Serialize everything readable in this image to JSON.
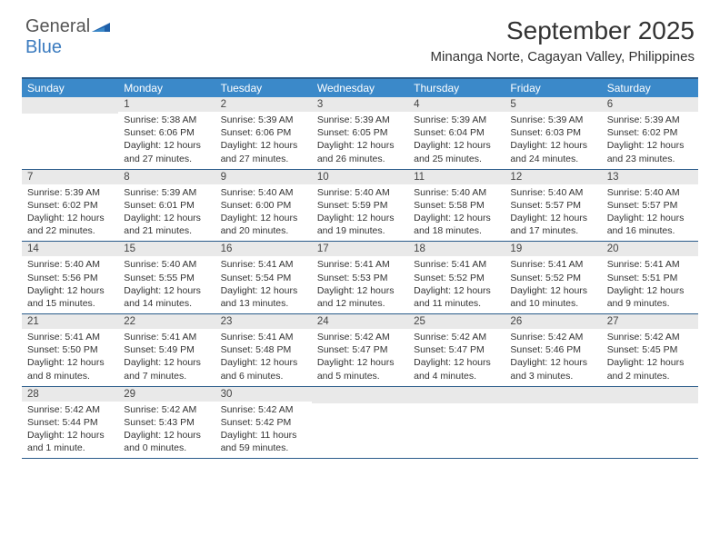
{
  "logo": {
    "text1": "General",
    "text2": "Blue"
  },
  "title": "September 2025",
  "location": "Minanga Norte, Cagayan Valley, Philippines",
  "colors": {
    "header_bg": "#3b89c9",
    "header_text": "#ffffff",
    "daynum_bg": "#e9e9e9",
    "border": "#2a5b8a",
    "logo_accent": "#3b7bbf"
  },
  "day_headers": [
    "Sunday",
    "Monday",
    "Tuesday",
    "Wednesday",
    "Thursday",
    "Friday",
    "Saturday"
  ],
  "weeks": [
    [
      {
        "n": "",
        "sr": "",
        "ss": "",
        "dl": ""
      },
      {
        "n": "1",
        "sr": "Sunrise: 5:38 AM",
        "ss": "Sunset: 6:06 PM",
        "dl": "Daylight: 12 hours and 27 minutes."
      },
      {
        "n": "2",
        "sr": "Sunrise: 5:39 AM",
        "ss": "Sunset: 6:06 PM",
        "dl": "Daylight: 12 hours and 27 minutes."
      },
      {
        "n": "3",
        "sr": "Sunrise: 5:39 AM",
        "ss": "Sunset: 6:05 PM",
        "dl": "Daylight: 12 hours and 26 minutes."
      },
      {
        "n": "4",
        "sr": "Sunrise: 5:39 AM",
        "ss": "Sunset: 6:04 PM",
        "dl": "Daylight: 12 hours and 25 minutes."
      },
      {
        "n": "5",
        "sr": "Sunrise: 5:39 AM",
        "ss": "Sunset: 6:03 PM",
        "dl": "Daylight: 12 hours and 24 minutes."
      },
      {
        "n": "6",
        "sr": "Sunrise: 5:39 AM",
        "ss": "Sunset: 6:02 PM",
        "dl": "Daylight: 12 hours and 23 minutes."
      }
    ],
    [
      {
        "n": "7",
        "sr": "Sunrise: 5:39 AM",
        "ss": "Sunset: 6:02 PM",
        "dl": "Daylight: 12 hours and 22 minutes."
      },
      {
        "n": "8",
        "sr": "Sunrise: 5:39 AM",
        "ss": "Sunset: 6:01 PM",
        "dl": "Daylight: 12 hours and 21 minutes."
      },
      {
        "n": "9",
        "sr": "Sunrise: 5:40 AM",
        "ss": "Sunset: 6:00 PM",
        "dl": "Daylight: 12 hours and 20 minutes."
      },
      {
        "n": "10",
        "sr": "Sunrise: 5:40 AM",
        "ss": "Sunset: 5:59 PM",
        "dl": "Daylight: 12 hours and 19 minutes."
      },
      {
        "n": "11",
        "sr": "Sunrise: 5:40 AM",
        "ss": "Sunset: 5:58 PM",
        "dl": "Daylight: 12 hours and 18 minutes."
      },
      {
        "n": "12",
        "sr": "Sunrise: 5:40 AM",
        "ss": "Sunset: 5:57 PM",
        "dl": "Daylight: 12 hours and 17 minutes."
      },
      {
        "n": "13",
        "sr": "Sunrise: 5:40 AM",
        "ss": "Sunset: 5:57 PM",
        "dl": "Daylight: 12 hours and 16 minutes."
      }
    ],
    [
      {
        "n": "14",
        "sr": "Sunrise: 5:40 AM",
        "ss": "Sunset: 5:56 PM",
        "dl": "Daylight: 12 hours and 15 minutes."
      },
      {
        "n": "15",
        "sr": "Sunrise: 5:40 AM",
        "ss": "Sunset: 5:55 PM",
        "dl": "Daylight: 12 hours and 14 minutes."
      },
      {
        "n": "16",
        "sr": "Sunrise: 5:41 AM",
        "ss": "Sunset: 5:54 PM",
        "dl": "Daylight: 12 hours and 13 minutes."
      },
      {
        "n": "17",
        "sr": "Sunrise: 5:41 AM",
        "ss": "Sunset: 5:53 PM",
        "dl": "Daylight: 12 hours and 12 minutes."
      },
      {
        "n": "18",
        "sr": "Sunrise: 5:41 AM",
        "ss": "Sunset: 5:52 PM",
        "dl": "Daylight: 12 hours and 11 minutes."
      },
      {
        "n": "19",
        "sr": "Sunrise: 5:41 AM",
        "ss": "Sunset: 5:52 PM",
        "dl": "Daylight: 12 hours and 10 minutes."
      },
      {
        "n": "20",
        "sr": "Sunrise: 5:41 AM",
        "ss": "Sunset: 5:51 PM",
        "dl": "Daylight: 12 hours and 9 minutes."
      }
    ],
    [
      {
        "n": "21",
        "sr": "Sunrise: 5:41 AM",
        "ss": "Sunset: 5:50 PM",
        "dl": "Daylight: 12 hours and 8 minutes."
      },
      {
        "n": "22",
        "sr": "Sunrise: 5:41 AM",
        "ss": "Sunset: 5:49 PM",
        "dl": "Daylight: 12 hours and 7 minutes."
      },
      {
        "n": "23",
        "sr": "Sunrise: 5:41 AM",
        "ss": "Sunset: 5:48 PM",
        "dl": "Daylight: 12 hours and 6 minutes."
      },
      {
        "n": "24",
        "sr": "Sunrise: 5:42 AM",
        "ss": "Sunset: 5:47 PM",
        "dl": "Daylight: 12 hours and 5 minutes."
      },
      {
        "n": "25",
        "sr": "Sunrise: 5:42 AM",
        "ss": "Sunset: 5:47 PM",
        "dl": "Daylight: 12 hours and 4 minutes."
      },
      {
        "n": "26",
        "sr": "Sunrise: 5:42 AM",
        "ss": "Sunset: 5:46 PM",
        "dl": "Daylight: 12 hours and 3 minutes."
      },
      {
        "n": "27",
        "sr": "Sunrise: 5:42 AM",
        "ss": "Sunset: 5:45 PM",
        "dl": "Daylight: 12 hours and 2 minutes."
      }
    ],
    [
      {
        "n": "28",
        "sr": "Sunrise: 5:42 AM",
        "ss": "Sunset: 5:44 PM",
        "dl": "Daylight: 12 hours and 1 minute."
      },
      {
        "n": "29",
        "sr": "Sunrise: 5:42 AM",
        "ss": "Sunset: 5:43 PM",
        "dl": "Daylight: 12 hours and 0 minutes."
      },
      {
        "n": "30",
        "sr": "Sunrise: 5:42 AM",
        "ss": "Sunset: 5:42 PM",
        "dl": "Daylight: 11 hours and 59 minutes."
      },
      {
        "n": "",
        "sr": "",
        "ss": "",
        "dl": ""
      },
      {
        "n": "",
        "sr": "",
        "ss": "",
        "dl": ""
      },
      {
        "n": "",
        "sr": "",
        "ss": "",
        "dl": ""
      },
      {
        "n": "",
        "sr": "",
        "ss": "",
        "dl": ""
      }
    ]
  ]
}
